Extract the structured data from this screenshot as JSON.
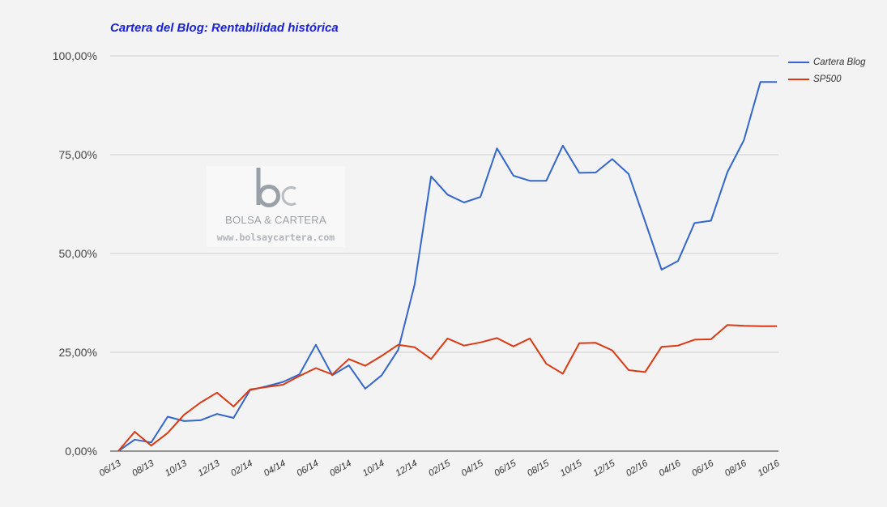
{
  "chart_data": {
    "type": "line",
    "title": "Cartera del Blog: Rentabilidad histórica",
    "ylim": [
      0,
      100
    ],
    "y_ticks": [
      0,
      25,
      50,
      75,
      100
    ],
    "y_tick_labels": [
      "0,00%",
      "25,00%",
      "50,00%",
      "75,00%",
      "100,00%"
    ],
    "x_tick_labels": [
      "06/13",
      "08/13",
      "10/13",
      "12/13",
      "02/14",
      "04/14",
      "06/14",
      "08/14",
      "10/14",
      "12/14",
      "02/15",
      "04/15",
      "06/15",
      "08/15",
      "10/15",
      "12/15",
      "02/16",
      "04/16",
      "06/16",
      "08/16",
      "10/16"
    ],
    "x": [
      "06/13",
      "07/13",
      "08/13",
      "09/13",
      "10/13",
      "11/13",
      "12/13",
      "01/14",
      "02/14",
      "03/14",
      "04/14",
      "05/14",
      "06/14",
      "07/14",
      "08/14",
      "09/14",
      "10/14",
      "11/14",
      "12/14",
      "01/15",
      "02/15",
      "03/15",
      "04/15",
      "05/15",
      "06/15",
      "07/15",
      "08/15",
      "09/15",
      "10/15",
      "11/15",
      "12/15",
      "01/16",
      "02/16",
      "03/16",
      "04/16",
      "05/16",
      "06/16",
      "07/16",
      "08/16",
      "09/16",
      "10/16"
    ],
    "grid": true,
    "legend_position": "right-top",
    "series": [
      {
        "name": "Cartera Blog",
        "color": "#3366cc",
        "values": [
          0,
          2.9,
          2.2,
          8.7,
          7.6,
          7.8,
          9.4,
          8.4,
          15.4,
          16.4,
          17.5,
          19.4,
          26.9,
          19.2,
          21.7,
          15.8,
          19.2,
          25.6,
          42.1,
          69.5,
          64.9,
          62.9,
          64.3,
          76.6,
          69.7,
          68.4,
          68.4,
          77.3,
          70.4,
          70.5,
          73.9,
          70.1,
          58.1,
          45.9,
          48.1,
          57.7,
          58.3,
          70.6,
          78.7,
          93.4,
          93.4
        ]
      },
      {
        "name": "SP500",
        "color": "#dc3912",
        "values": [
          0,
          4.9,
          1.4,
          4.6,
          9.2,
          12.3,
          14.8,
          11.3,
          15.6,
          16.2,
          16.8,
          19.0,
          21.0,
          19.4,
          23.3,
          21.6,
          24.1,
          26.9,
          26.3,
          23.3,
          28.5,
          26.7,
          27.5,
          28.6,
          26.5,
          28.5,
          22.1,
          19.6,
          27.3,
          27.4,
          25.5,
          20.5,
          20.0,
          26.4,
          26.7,
          28.2,
          28.3,
          31.9,
          31.7,
          31.6,
          31.6
        ]
      }
    ]
  },
  "watermark": {
    "logo_text": "bc",
    "name": "BOLSA & CARTERA",
    "url": "www.bolsaycartera.com"
  }
}
